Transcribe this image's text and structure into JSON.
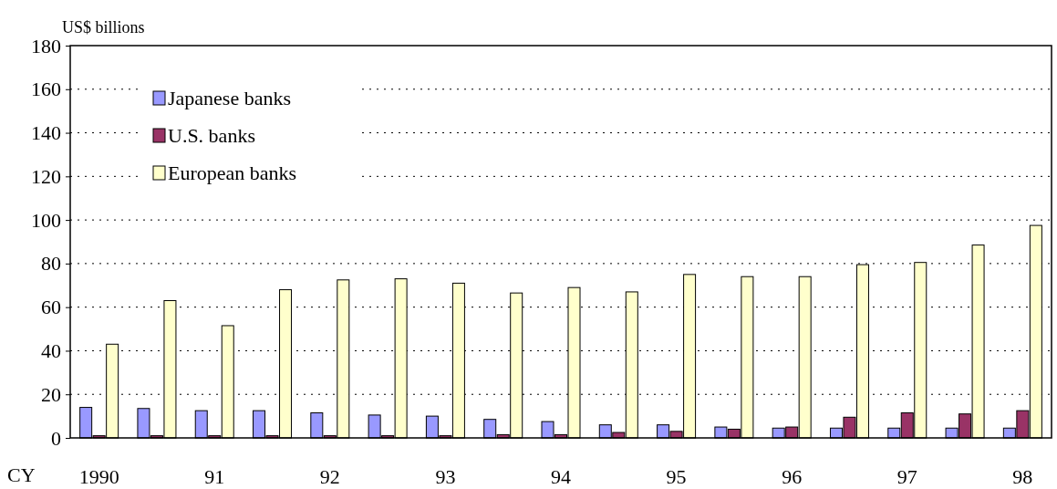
{
  "chart_data": {
    "type": "bar",
    "ylabel": "US$ billions",
    "xlabel": "CY",
    "categories": [
      "1990",
      null,
      "91",
      null,
      "92",
      null,
      "93",
      null,
      "94",
      null,
      "95",
      null,
      "96",
      null,
      "97",
      null,
      "98"
    ],
    "series": [
      {
        "name": "Japanese banks",
        "color": "#9999ff",
        "values": [
          14,
          13.5,
          12.5,
          12.5,
          11.5,
          10.5,
          10,
          8.5,
          7.5,
          6,
          6,
          5,
          4.5,
          4.5,
          4.5,
          4.5,
          4.5
        ]
      },
      {
        "name": "U.S. banks",
        "color": "#993366",
        "values": [
          1,
          1,
          1,
          1,
          1,
          1,
          1,
          1.5,
          1.5,
          2.5,
          3,
          4,
          5,
          9.5,
          11.5,
          11,
          12.5
        ]
      },
      {
        "name": "European banks",
        "color": "#ffffcc",
        "values": [
          43,
          63,
          51.5,
          68,
          72.5,
          73,
          71,
          66.5,
          69,
          67,
          75,
          74,
          74,
          79.5,
          80.5,
          88.5,
          97.5
        ]
      }
    ],
    "ylim": [
      0,
      180
    ],
    "yticks": [
      0,
      20,
      40,
      60,
      80,
      100,
      120,
      140,
      160,
      180
    ],
    "grid": "y",
    "legend": "top left"
  }
}
